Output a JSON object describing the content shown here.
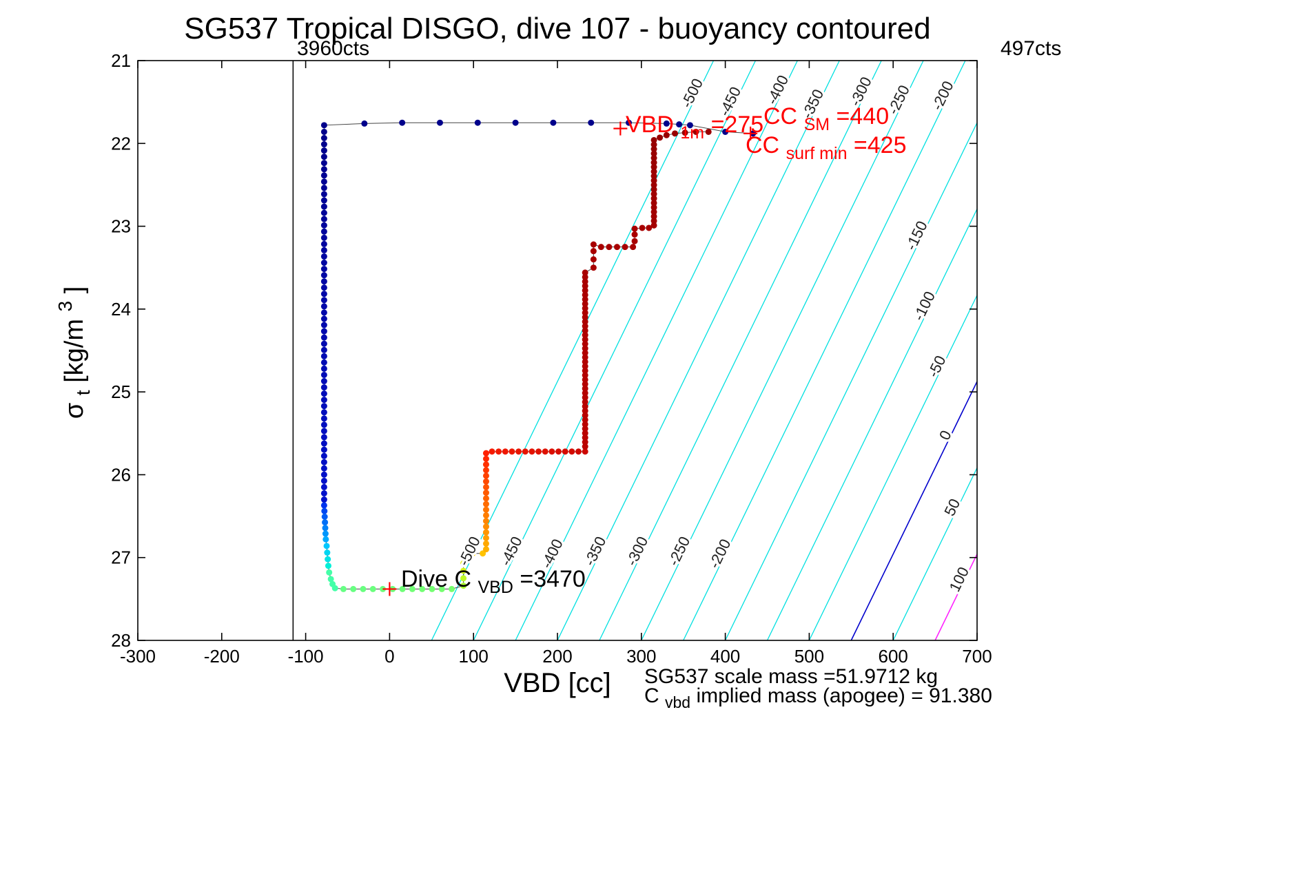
{
  "title": "SG537 Tropical DISGO, dive 107 - buoyancy contoured",
  "top_left_label": "3960cts",
  "top_right_label": "497cts",
  "xlabel": "VBD [cc]",
  "ylabel_parts": [
    "σ",
    "t",
    " [kg/m",
    "3",
    "]"
  ],
  "annotations": {
    "vbd1m": [
      "VBD",
      "1m",
      " =275"
    ],
    "ccsm": [
      "CC",
      "SM",
      "=440"
    ],
    "ccsurf": [
      "CC",
      "surf min",
      "=425"
    ],
    "divec": [
      "Dive C",
      "VBD",
      " =3470"
    ]
  },
  "footer": {
    "line1": "SG537 scale mass =51.9712 kg",
    "line2": [
      "C",
      "vbd",
      " implied mass (apogee) = 91.380"
    ]
  },
  "chart_data": {
    "type": "scatter",
    "title": "SG537 Tropical DISGO, dive 107 - buoyancy contoured",
    "xlabel": "VBD [cc]",
    "ylabel": "sigma_t [kg/m^3]",
    "xlim": [
      -300,
      700
    ],
    "ylim": [
      21,
      28
    ],
    "y_inverted": true,
    "grid": false,
    "x_ticks": [
      -300,
      -200,
      -100,
      0,
      100,
      200,
      300,
      400,
      500,
      600,
      700
    ],
    "y_ticks": [
      21,
      22,
      23,
      24,
      25,
      26,
      27,
      28
    ],
    "vbd_counts_line": {
      "v": -115,
      "label": "3960cts",
      "color": "#000000"
    },
    "contours": {
      "levels": [
        -500,
        -450,
        -400,
        -350,
        -300,
        -250,
        -200,
        -150,
        -100,
        -50,
        0,
        50,
        100
      ],
      "v_offset_at_sigma28": 550,
      "dv_per_sigma": 48,
      "default_color": "#00E0E0",
      "zero_color": "#0000CC",
      "pos100_color": "#FF22FF",
      "label_color": "#222222",
      "labels": [
        {
          "level": -500,
          "sigma": 21.42
        },
        {
          "level": -450,
          "sigma": 21.52
        },
        {
          "level": -400,
          "sigma": 21.38
        },
        {
          "level": -350,
          "sigma": 21.55
        },
        {
          "level": -300,
          "sigma": 21.4
        },
        {
          "level": -250,
          "sigma": 21.5
        },
        {
          "level": -200,
          "sigma": 21.45
        },
        {
          "level": -150,
          "sigma": 23.14
        },
        {
          "level": -100,
          "sigma": 23.99
        },
        {
          "level": -50,
          "sigma": 24.72
        },
        {
          "level": 0,
          "sigma": 25.55
        },
        {
          "level": 50,
          "sigma": 26.42
        },
        {
          "level": 100,
          "sigma": 27.29
        },
        {
          "level": -500,
          "sigma": 26.95
        },
        {
          "level": -450,
          "sigma": 26.95
        },
        {
          "level": -400,
          "sigma": 26.98
        },
        {
          "level": -350,
          "sigma": 26.95
        },
        {
          "level": -300,
          "sigma": 26.95
        },
        {
          "level": -250,
          "sigma": 26.95
        },
        {
          "level": -200,
          "sigma": 26.98
        }
      ]
    },
    "trajectory": {
      "line_color": "#444444",
      "dot_radius": 4.5,
      "plus_color": "#FF0000",
      "plus_markers": [
        {
          "v": 0,
          "sigma": 27.38
        },
        {
          "v": 275,
          "sigma": 21.82
        },
        {
          "v": 430,
          "sigma": 21.88
        }
      ],
      "segments": [
        {
          "name": "surface-approach",
          "color": "#00008B",
          "points": [
            [
              433,
              21.88
            ],
            [
              400,
              21.86
            ]
          ]
        },
        {
          "name": "surface-run",
          "color": "#00008B",
          "points": [
            [
              358,
              21.78
            ],
            [
              345,
              21.77
            ],
            [
              330,
              21.76
            ],
            [
              285,
              21.75
            ],
            [
              240,
              21.75
            ],
            [
              195,
              21.75
            ],
            [
              150,
              21.75
            ],
            [
              105,
              21.75
            ],
            [
              60,
              21.75
            ],
            [
              15,
              21.75
            ],
            [
              -30,
              21.76
            ],
            [
              -78,
              21.78
            ]
          ]
        },
        {
          "name": "descent-deep-blue",
          "color_from": "#00008B",
          "color_to": "#0011CC",
          "from": [
            -78,
            21.86
          ],
          "to": [
            -78,
            26.3
          ],
          "n": 60
        },
        {
          "name": "descent-blue-fade",
          "color_from": "#0033EE",
          "color_to": "#00AAFF",
          "from": [
            -78,
            26.37
          ],
          "to": [
            -76,
            26.78
          ],
          "n": 7
        },
        {
          "name": "descent-cyan",
          "color_from": "#00C8FF",
          "color_to": "#00F0D8",
          "from": [
            -75,
            26.86
          ],
          "to": [
            -73,
            27.1
          ],
          "n": 4
        },
        {
          "name": "descent-aqua-curve",
          "color": "#44FFA8",
          "points": [
            [
              -72,
              27.18
            ],
            [
              -70,
              27.26
            ],
            [
              -68,
              27.32
            ],
            [
              -65,
              27.37
            ]
          ]
        },
        {
          "name": "bottom-run",
          "color_from": "#66FF84",
          "color_to": "#77FF6E",
          "from": [
            -55,
            27.38
          ],
          "to": [
            74,
            27.38
          ],
          "n": 12
        },
        {
          "name": "climb-yellow",
          "color_from": "#AAFF33",
          "color_to": "#FFE600",
          "from": [
            88,
            27.34
          ],
          "to": [
            88,
            26.98
          ],
          "n": 5
        },
        {
          "name": "climb-step-1",
          "color_from": "#FFD400",
          "color_to": "#FFC300",
          "from": [
            99,
            26.95
          ],
          "to": [
            111,
            26.95
          ],
          "n": 2
        },
        {
          "name": "climb-orange-red",
          "color_from": "#FFB000",
          "color_to": "#FF2000",
          "from": [
            115,
            26.9
          ],
          "to": [
            115,
            25.74
          ],
          "n": 18
        },
        {
          "name": "mid-level-run",
          "color_from": "#F51A00",
          "color_to": "#CC0800",
          "from": [
            122,
            25.72
          ],
          "to": [
            233,
            25.72
          ],
          "n": 15
        },
        {
          "name": "climb-dark-red-1",
          "color_from": "#BB0300",
          "color_to": "#A80000",
          "from": [
            233,
            25.66
          ],
          "to": [
            233,
            23.56
          ],
          "n": 40
        },
        {
          "name": "climb-step-2",
          "color": "#A80000",
          "points": [
            [
              243,
              23.5
            ],
            [
              243,
              23.4
            ],
            [
              243,
              23.3
            ],
            [
              243,
              23.22
            ]
          ]
        },
        {
          "name": "mid-run-2",
          "color": "#A80000",
          "from": [
            252,
            23.25
          ],
          "to": [
            290,
            23.25
          ],
          "n": 5
        },
        {
          "name": "climb-step-3",
          "color": "#A80000",
          "points": [
            [
              292,
              23.18
            ],
            [
              292,
              23.1
            ],
            [
              292,
              23.03
            ]
          ]
        },
        {
          "name": "mid-run-3",
          "color": "#A80000",
          "points": [
            [
              301,
              23.02
            ],
            [
              309,
              23.02
            ]
          ]
        },
        {
          "name": "climb-dark-red-2",
          "color_from": "#A40000",
          "color_to": "#960000",
          "from": [
            315,
            22.99
          ],
          "to": [
            315,
            21.96
          ],
          "n": 20
        },
        {
          "name": "surface-tail",
          "color": "#990000",
          "points": [
            [
              322,
              21.93
            ],
            [
              330,
              21.9
            ],
            [
              340,
              21.88
            ],
            [
              352,
              21.87
            ],
            [
              365,
              21.86
            ],
            [
              380,
              21.86
            ]
          ]
        }
      ]
    }
  }
}
